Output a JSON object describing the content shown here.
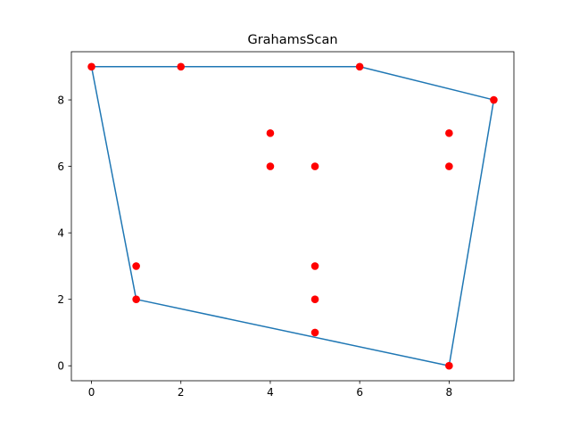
{
  "chart_data": {
    "type": "scatter",
    "title": "GrahamsScan",
    "xlabel": "",
    "ylabel": "",
    "xlim": [
      -0.45,
      9.45
    ],
    "ylim": [
      -0.45,
      9.45
    ],
    "x_ticks": [
      0,
      2,
      4,
      6,
      8
    ],
    "y_ticks": [
      0,
      2,
      4,
      6,
      8
    ],
    "grid": false,
    "colors": {
      "points": "#ff0000",
      "hull": "#1f77b4"
    },
    "points": [
      {
        "x": 0,
        "y": 9
      },
      {
        "x": 2,
        "y": 9
      },
      {
        "x": 6,
        "y": 9
      },
      {
        "x": 9,
        "y": 8
      },
      {
        "x": 4,
        "y": 7
      },
      {
        "x": 8,
        "y": 7
      },
      {
        "x": 4,
        "y": 6
      },
      {
        "x": 5,
        "y": 6
      },
      {
        "x": 8,
        "y": 6
      },
      {
        "x": 1,
        "y": 3
      },
      {
        "x": 5,
        "y": 3
      },
      {
        "x": 1,
        "y": 2
      },
      {
        "x": 5,
        "y": 2
      },
      {
        "x": 5,
        "y": 1
      },
      {
        "x": 8,
        "y": 0
      }
    ],
    "hull": [
      {
        "x": 0,
        "y": 9
      },
      {
        "x": 6,
        "y": 9
      },
      {
        "x": 9,
        "y": 8
      },
      {
        "x": 8,
        "y": 0
      },
      {
        "x": 1,
        "y": 2
      },
      {
        "x": 0,
        "y": 9
      }
    ]
  }
}
